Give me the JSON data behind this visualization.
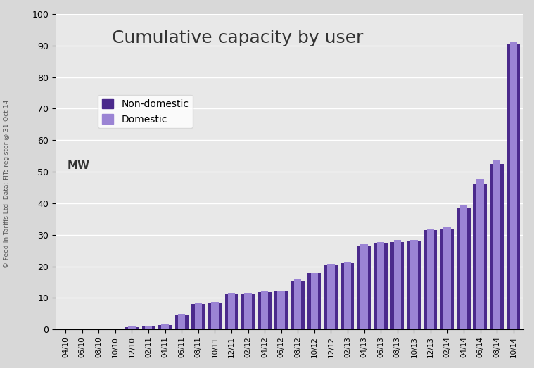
{
  "title": "Cumulative capacity by user",
  "background_color": "#e8e8e8",
  "fig_background": "#d8d8d8",
  "ylim": [
    0,
    100
  ],
  "yticks": [
    0,
    10,
    20,
    30,
    40,
    50,
    60,
    70,
    80,
    90,
    100
  ],
  "watermark": "© Feed-In Tariffs Ltd; Data: FITs register @ 31-Oct-14",
  "categories": [
    "04/10",
    "06/10",
    "08/10",
    "10/10",
    "12/10",
    "02/11",
    "04/11",
    "06/11",
    "08/11",
    "10/11",
    "12/11",
    "02/12",
    "04/12",
    "06/12",
    "08/12",
    "10/12",
    "12/12",
    "02/13",
    "04/13",
    "06/13",
    "08/13",
    "10/13",
    "12/13",
    "02/14",
    "04/14",
    "06/14",
    "08/14",
    "10/14"
  ],
  "non_domestic": [
    0,
    0,
    0,
    0,
    0.8,
    0.9,
    1.5,
    4.8,
    8.2,
    8.5,
    11.2,
    11.3,
    11.8,
    12.0,
    15.5,
    17.8,
    20.5,
    21.0,
    26.5,
    27.3,
    27.8,
    28.0,
    31.5,
    32.0,
    38.5,
    46.0,
    52.5,
    90.5
  ],
  "domestic": [
    0,
    0,
    0,
    0,
    0.9,
    1.0,
    1.8,
    5.0,
    8.5,
    8.8,
    11.5,
    11.5,
    12.0,
    12.2,
    15.8,
    18.0,
    20.8,
    21.3,
    27.0,
    27.7,
    28.3,
    28.5,
    32.0,
    32.5,
    39.5,
    47.5,
    53.5,
    91.0
  ],
  "non_domestic_color": "#4b2a8c",
  "domestic_color": "#9b84d4",
  "legend_non_domestic": "Non-domestic",
  "legend_domestic": "Domestic",
  "mw_label": "MW"
}
